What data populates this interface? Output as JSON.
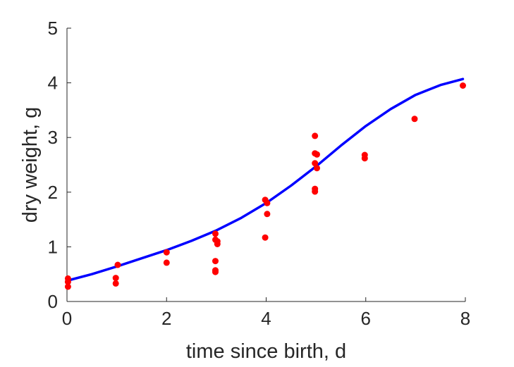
{
  "chart_data": {
    "type": "scatter",
    "title": "",
    "xlabel": "time since birth, d",
    "ylabel": "dry weight, g",
    "xlim": [
      0,
      8
    ],
    "ylim": [
      0,
      5
    ],
    "xticks": [
      "0",
      "2",
      "4",
      "6",
      "8"
    ],
    "yticks": [
      "0",
      "1",
      "2",
      "3",
      "4",
      "5"
    ],
    "grid": false,
    "legend": "none",
    "series": [
      {
        "kind": "scatter",
        "color": "#ff0000",
        "points": [
          [
            0.02,
            0.42
          ],
          [
            0.02,
            0.36
          ],
          [
            0.02,
            0.27
          ],
          [
            0.98,
            0.43
          ],
          [
            0.98,
            0.33
          ],
          [
            1.02,
            0.67
          ],
          [
            2.0,
            0.9
          ],
          [
            2.0,
            0.71
          ],
          [
            2.98,
            1.24
          ],
          [
            2.98,
            1.13
          ],
          [
            3.02,
            1.1
          ],
          [
            3.02,
            1.05
          ],
          [
            2.98,
            0.74
          ],
          [
            2.98,
            0.57
          ],
          [
            2.98,
            0.54
          ],
          [
            3.98,
            1.86
          ],
          [
            4.02,
            1.8
          ],
          [
            4.02,
            1.6
          ],
          [
            3.98,
            1.17
          ],
          [
            4.98,
            3.03
          ],
          [
            4.98,
            2.71
          ],
          [
            5.02,
            2.69
          ],
          [
            4.98,
            2.53
          ],
          [
            5.02,
            2.44
          ],
          [
            4.98,
            2.06
          ],
          [
            4.98,
            2.01
          ],
          [
            5.98,
            2.68
          ],
          [
            5.98,
            2.62
          ],
          [
            6.98,
            3.34
          ],
          [
            7.95,
            3.95
          ]
        ]
      },
      {
        "kind": "line",
        "color": "#0000ff",
        "x": [
          0,
          0.5,
          1,
          1.5,
          2,
          2.5,
          3,
          3.5,
          4,
          4.5,
          5,
          5.5,
          6,
          6.5,
          7,
          7.5,
          7.95
        ],
        "y": [
          0.38,
          0.5,
          0.64,
          0.79,
          0.94,
          1.11,
          1.3,
          1.53,
          1.8,
          2.12,
          2.47,
          2.85,
          3.21,
          3.52,
          3.78,
          3.96,
          4.07
        ]
      }
    ]
  }
}
